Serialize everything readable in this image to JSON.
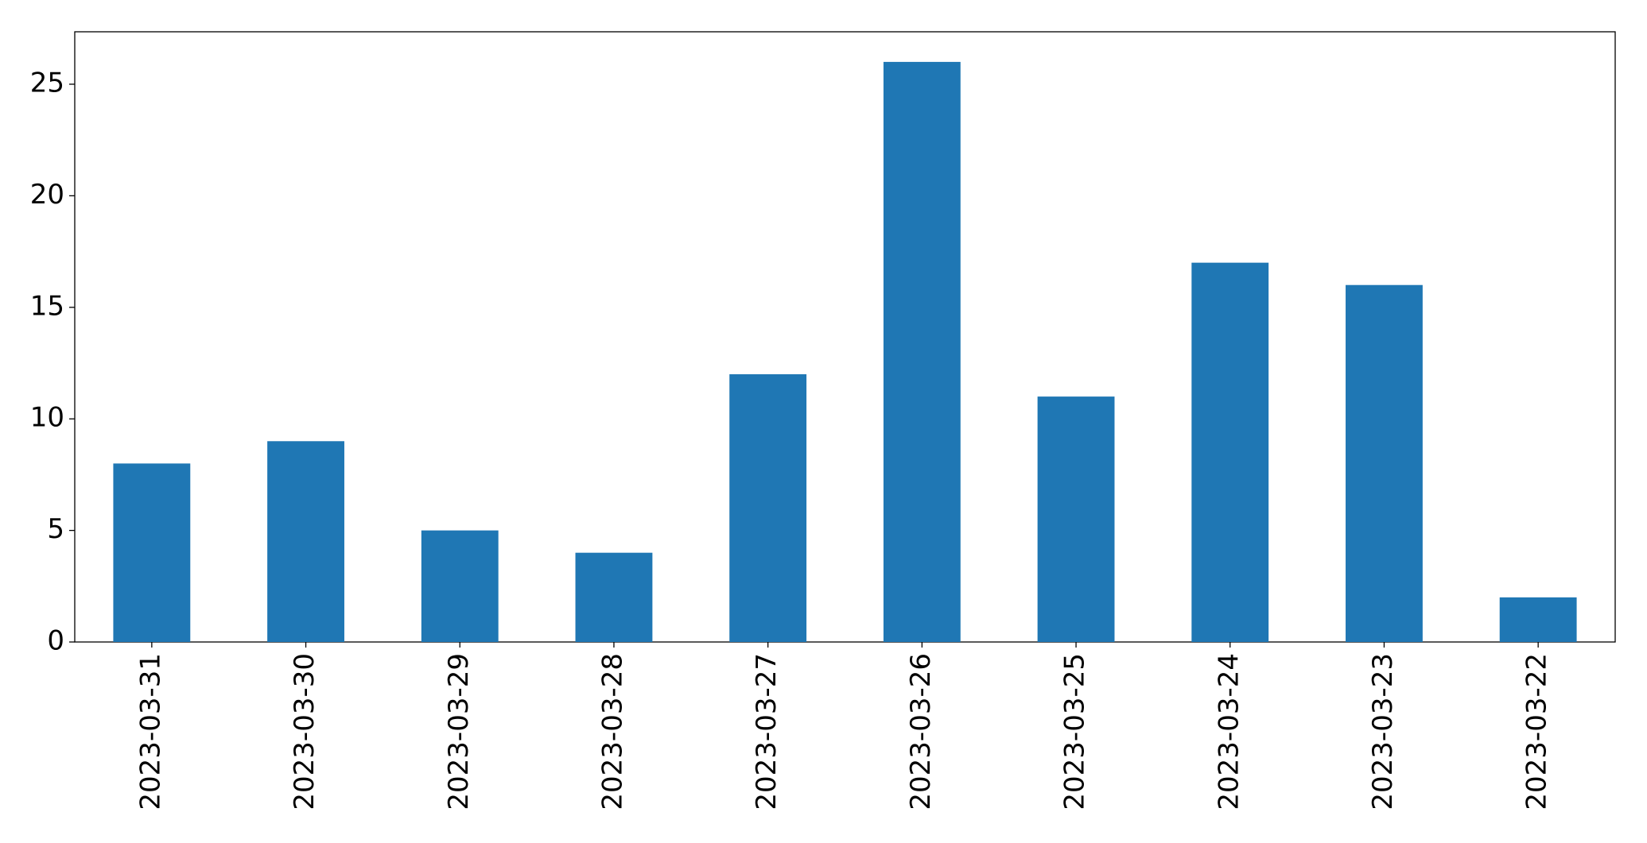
{
  "chart_data": {
    "type": "bar",
    "categories": [
      "2023-03-31",
      "2023-03-30",
      "2023-03-29",
      "2023-03-28",
      "2023-03-27",
      "2023-03-26",
      "2023-03-25",
      "2023-03-24",
      "2023-03-23",
      "2023-03-22"
    ],
    "values": [
      8,
      9,
      5,
      4,
      12,
      26,
      11,
      17,
      16,
      2
    ],
    "color": "#1f77b4",
    "ylim": [
      0,
      27.35
    ],
    "yticks": [
      0,
      5,
      10,
      15,
      20,
      25
    ],
    "grid": false
  }
}
